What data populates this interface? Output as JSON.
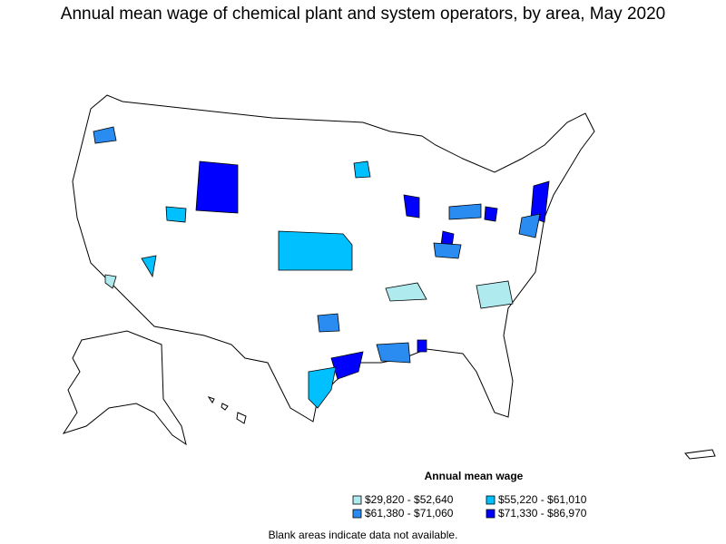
{
  "title": "Annual mean wage of chemical plant and system operators, by area, May 2020",
  "legend": {
    "title": "Annual mean wage",
    "items": [
      {
        "label": "$29,820 - $52,640",
        "color": "#aeeaee"
      },
      {
        "label": "$55,220 - $61,010",
        "color": "#00c0ff"
      },
      {
        "label": "$61,380 - $71,060",
        "color": "#2a8cf0"
      },
      {
        "label": "$71,330 - $86,970",
        "color": "#0000ff"
      }
    ]
  },
  "note": "Blank areas indicate data not available."
}
